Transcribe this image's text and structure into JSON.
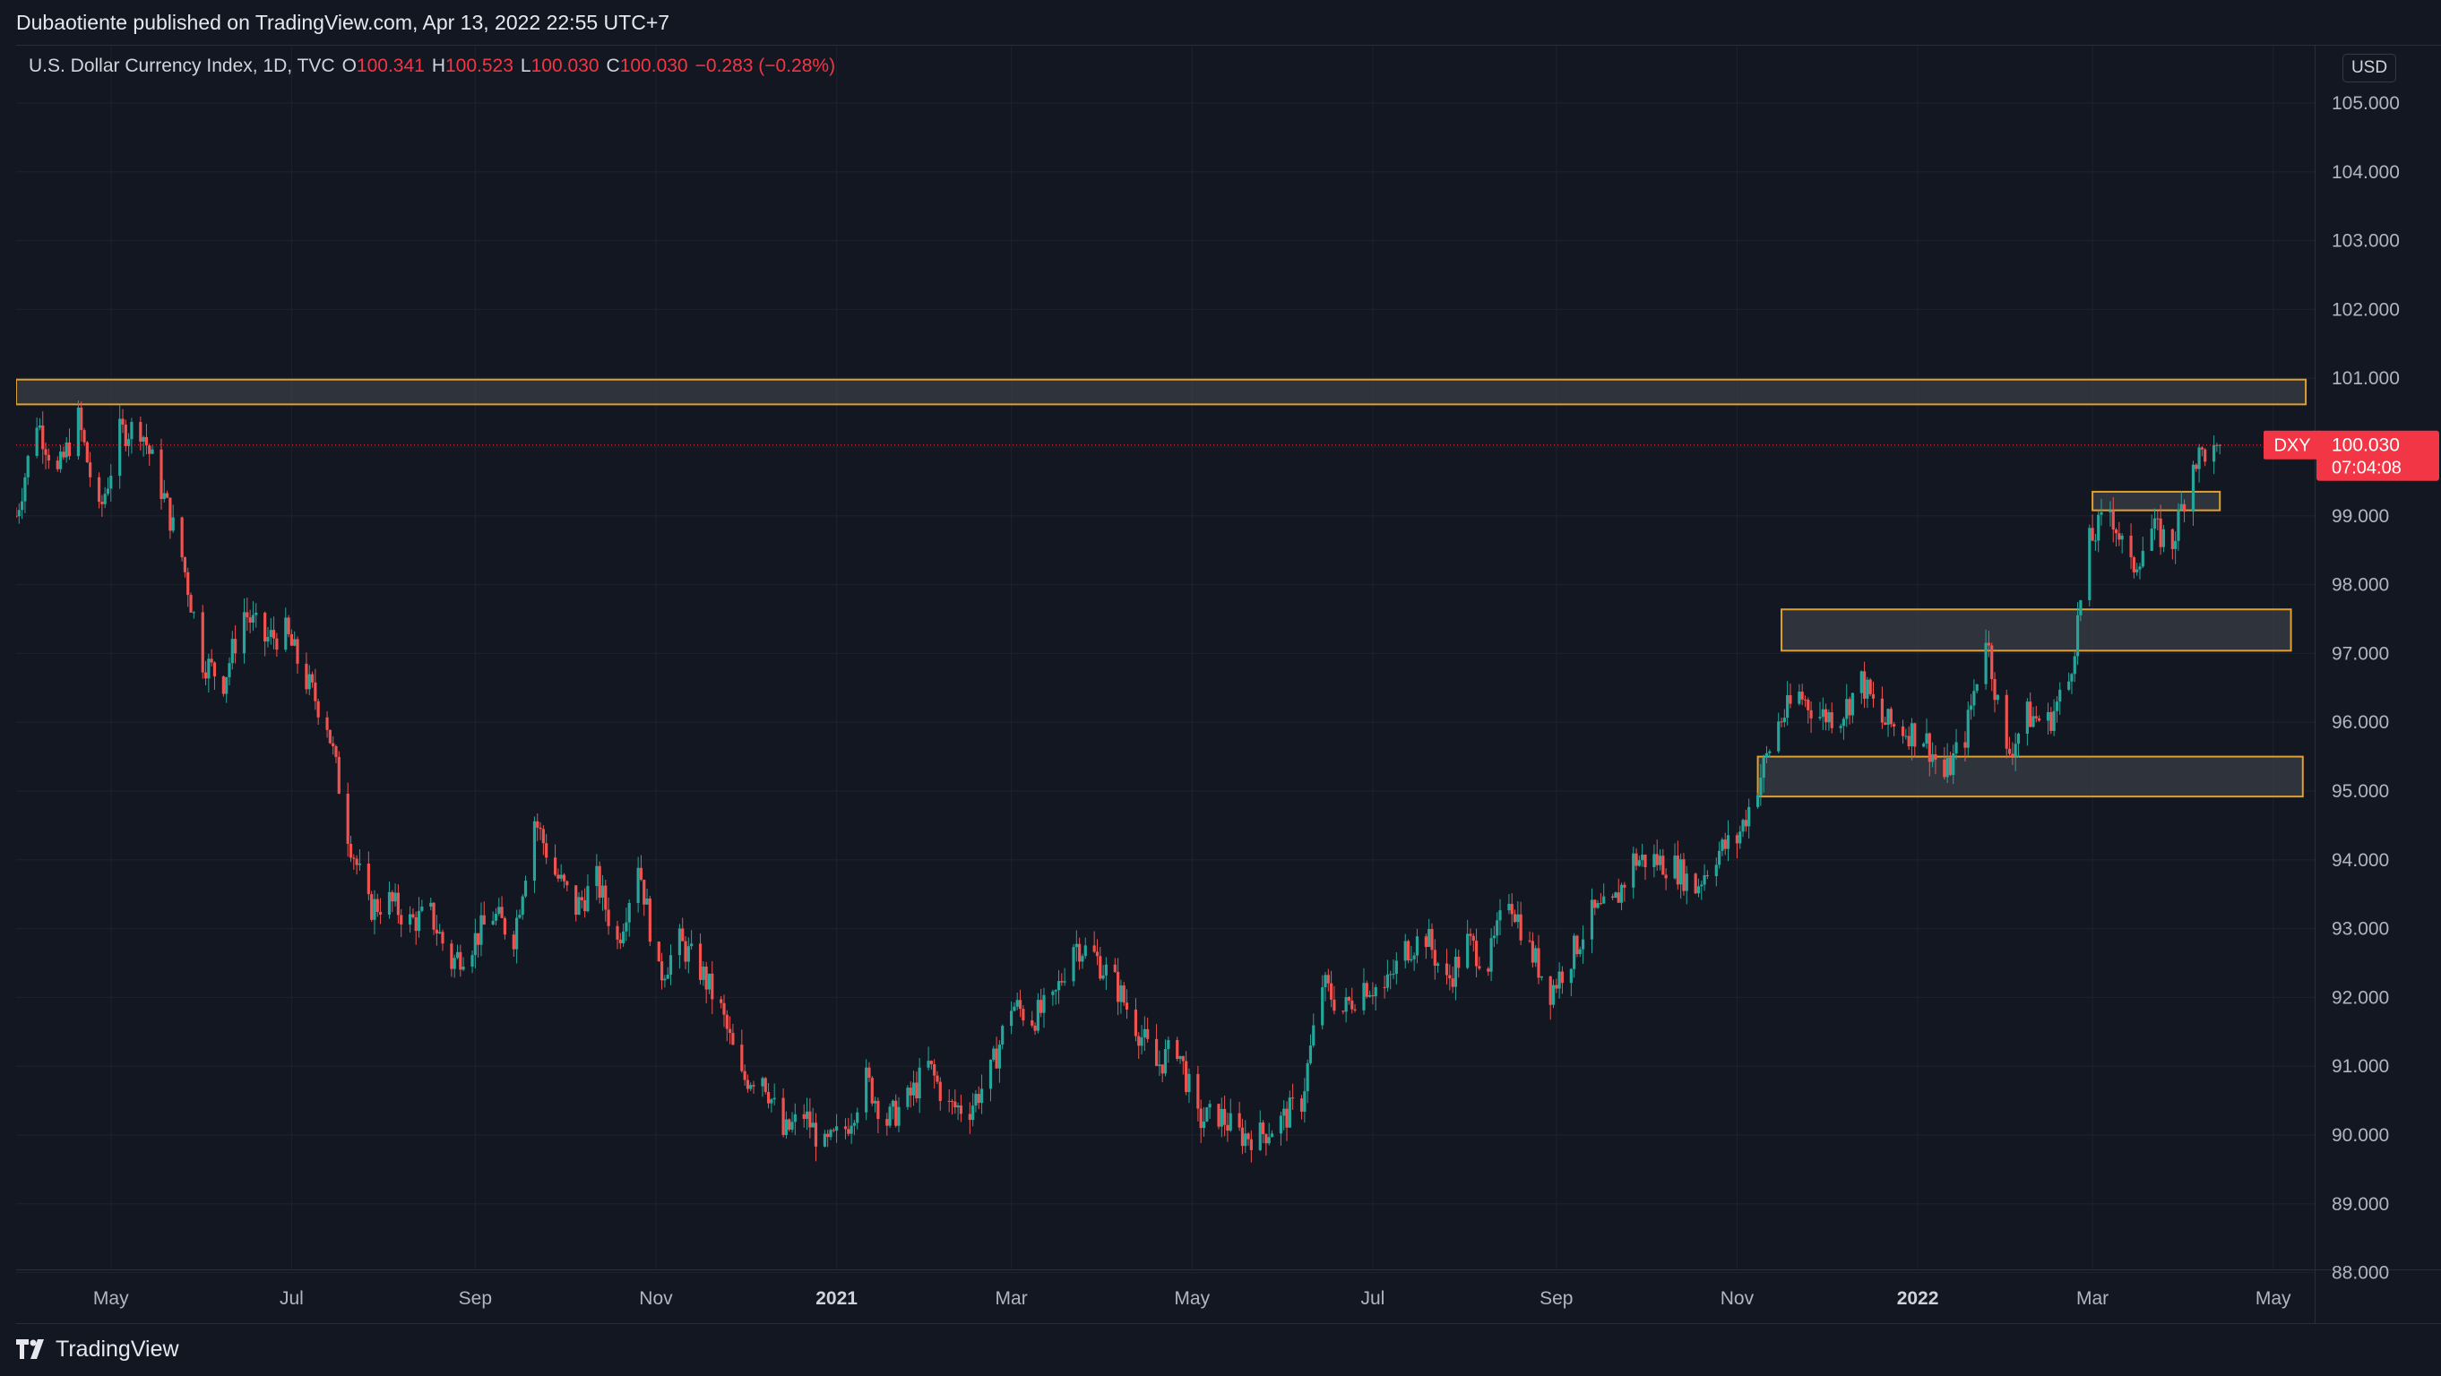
{
  "header": {
    "publisher": "Dubaotiente published on TradingView.com, Apr 13, 2022 22:55 UTC+7"
  },
  "legend": {
    "symbol": "U.S. Dollar Currency Index, 1D, TVC",
    "o_label": "O",
    "o_value": "100.341",
    "h_label": "H",
    "h_value": "100.523",
    "l_label": "L",
    "l_value": "100.030",
    "c_label": "C",
    "c_value": "100.030",
    "change": "−0.283 (−0.28%)"
  },
  "currency_button": "USD",
  "footer": {
    "logo_text": "TradingView"
  },
  "colors": {
    "background": "#131722",
    "grid": "#1e222d",
    "up": "#26a69a",
    "down": "#ef5350",
    "zone_border": "#e0a030",
    "zone_fill": "#3a3d46",
    "price_label": "#f23645"
  },
  "chart_data": {
    "type": "candlestick",
    "title": "U.S. Dollar Currency Index, 1D, TVC",
    "ylim": [
      88.0,
      105.5
    ],
    "y_ticks": [
      "105.000",
      "104.000",
      "103.000",
      "102.000",
      "101.000",
      "100.000",
      "99.000",
      "98.000",
      "97.000",
      "96.000",
      "95.000",
      "94.000",
      "93.000",
      "92.000",
      "91.000",
      "90.000",
      "89.000",
      "88.000"
    ],
    "x_labels": [
      {
        "label": "May",
        "date": "2020-05-01",
        "bold": false
      },
      {
        "label": "Jul",
        "date": "2020-07-01",
        "bold": false
      },
      {
        "label": "Sep",
        "date": "2020-09-01",
        "bold": false
      },
      {
        "label": "Nov",
        "date": "2020-11-01",
        "bold": false
      },
      {
        "label": "2021",
        "date": "2021-01-01",
        "bold": true
      },
      {
        "label": "Mar",
        "date": "2021-03-01",
        "bold": false
      },
      {
        "label": "May",
        "date": "2021-05-01",
        "bold": false
      },
      {
        "label": "Jul",
        "date": "2021-07-01",
        "bold": false
      },
      {
        "label": "Sep",
        "date": "2021-09-01",
        "bold": false
      },
      {
        "label": "Nov",
        "date": "2021-11-01",
        "bold": false
      },
      {
        "label": "2022",
        "date": "2022-01-01",
        "bold": true
      },
      {
        "label": "Mar",
        "date": "2022-03-01",
        "bold": false
      },
      {
        "label": "May",
        "date": "2022-05-01",
        "bold": false
      }
    ],
    "x_range": [
      "2020-03-30",
      "2022-05-15"
    ],
    "close_path": [
      [
        "2020-03-30",
        99.0
      ],
      [
        "2020-04-06",
        100.4
      ],
      [
        "2020-04-13",
        99.6
      ],
      [
        "2020-04-20",
        100.4
      ],
      [
        "2020-04-27",
        99.0
      ],
      [
        "2020-05-04",
        100.2
      ],
      [
        "2020-05-11",
        100.3
      ],
      [
        "2020-05-18",
        99.4
      ],
      [
        "2020-05-25",
        98.4
      ],
      [
        "2020-06-01",
        96.9
      ],
      [
        "2020-06-08",
        96.6
      ],
      [
        "2020-06-15",
        97.6
      ],
      [
        "2020-06-22",
        97.2
      ],
      [
        "2020-06-29",
        97.3
      ],
      [
        "2020-07-06",
        96.6
      ],
      [
        "2020-07-13",
        96.0
      ],
      [
        "2020-07-20",
        94.4
      ],
      [
        "2020-07-27",
        93.3
      ],
      [
        "2020-08-03",
        93.4
      ],
      [
        "2020-08-10",
        93.1
      ],
      [
        "2020-08-17",
        93.2
      ],
      [
        "2020-08-24",
        92.5
      ],
      [
        "2020-08-31",
        92.8
      ],
      [
        "2020-09-07",
        93.2
      ],
      [
        "2020-09-14",
        92.9
      ],
      [
        "2020-09-21",
        94.6
      ],
      [
        "2020-09-28",
        93.8
      ],
      [
        "2020-10-05",
        93.3
      ],
      [
        "2020-10-12",
        93.7
      ],
      [
        "2020-10-19",
        92.8
      ],
      [
        "2020-10-26",
        94.0
      ],
      [
        "2020-11-02",
        92.3
      ],
      [
        "2020-11-09",
        92.8
      ],
      [
        "2020-11-16",
        92.4
      ],
      [
        "2020-11-23",
        91.8
      ],
      [
        "2020-11-30",
        90.8
      ],
      [
        "2020-12-07",
        90.9
      ],
      [
        "2020-12-14",
        90.0
      ],
      [
        "2020-12-21",
        90.3
      ],
      [
        "2020-12-28",
        89.8
      ],
      [
        "2021-01-04",
        90.1
      ],
      [
        "2021-01-11",
        90.8
      ],
      [
        "2021-01-18",
        90.2
      ],
      [
        "2021-01-25",
        90.5
      ],
      [
        "2021-02-01",
        91.0
      ],
      [
        "2021-02-08",
        90.4
      ],
      [
        "2021-02-15",
        90.4
      ],
      [
        "2021-02-22",
        90.9
      ],
      [
        "2021-03-01",
        91.9
      ],
      [
        "2021-03-08",
        91.7
      ],
      [
        "2021-03-15",
        91.9
      ],
      [
        "2021-03-22",
        92.8
      ],
      [
        "2021-03-29",
        92.6
      ],
      [
        "2021-04-05",
        92.2
      ],
      [
        "2021-04-12",
        91.6
      ],
      [
        "2021-04-19",
        91.0
      ],
      [
        "2021-04-26",
        91.3
      ],
      [
        "2021-05-03",
        90.2
      ],
      [
        "2021-05-10",
        90.3
      ],
      [
        "2021-05-17",
        90.0
      ],
      [
        "2021-05-24",
        90.0
      ],
      [
        "2021-05-31",
        90.2
      ],
      [
        "2021-06-07",
        90.5
      ],
      [
        "2021-06-14",
        92.2
      ],
      [
        "2021-06-21",
        91.8
      ],
      [
        "2021-06-28",
        92.2
      ],
      [
        "2021-07-05",
        92.1
      ],
      [
        "2021-07-12",
        92.7
      ],
      [
        "2021-07-19",
        92.9
      ],
      [
        "2021-07-26",
        92.2
      ],
      [
        "2021-08-02",
        92.8
      ],
      [
        "2021-08-09",
        92.5
      ],
      [
        "2021-08-16",
        93.5
      ],
      [
        "2021-08-23",
        92.7
      ],
      [
        "2021-08-30",
        92.1
      ],
      [
        "2021-09-06",
        92.6
      ],
      [
        "2021-09-13",
        93.2
      ],
      [
        "2021-09-20",
        93.3
      ],
      [
        "2021-09-27",
        94.0
      ],
      [
        "2021-10-04",
        94.0
      ],
      [
        "2021-10-11",
        93.9
      ],
      [
        "2021-10-18",
        93.6
      ],
      [
        "2021-10-25",
        94.1
      ],
      [
        "2021-11-01",
        94.3
      ],
      [
        "2021-11-08",
        95.1
      ],
      [
        "2021-11-15",
        96.0
      ],
      [
        "2021-11-22",
        96.4
      ],
      [
        "2021-11-29",
        96.1
      ],
      [
        "2021-12-06",
        96.1
      ],
      [
        "2021-12-13",
        96.6
      ],
      [
        "2021-12-20",
        96.0
      ],
      [
        "2021-12-27",
        95.9
      ],
      [
        "2022-01-03",
        95.8
      ],
      [
        "2022-01-10",
        95.2
      ],
      [
        "2022-01-17",
        95.8
      ],
      [
        "2022-01-24",
        97.3
      ],
      [
        "2022-01-31",
        95.5
      ],
      [
        "2022-02-07",
        96.1
      ],
      [
        "2022-02-14",
        96.0
      ],
      [
        "2022-02-21",
        96.6
      ],
      [
        "2022-02-28",
        98.6
      ],
      [
        "2022-03-07",
        99.1
      ],
      [
        "2022-03-14",
        98.2
      ],
      [
        "2022-03-21",
        98.8
      ],
      [
        "2022-03-28",
        98.6
      ],
      [
        "2022-04-04",
        99.8
      ],
      [
        "2022-04-11",
        100.03
      ]
    ],
    "zones": [
      {
        "from": "2020-03-30",
        "to": "2022-05-12",
        "low": 100.62,
        "high": 100.98
      },
      {
        "from": "2022-03-01",
        "to": "2022-04-13",
        "low": 99.08,
        "high": 99.35
      },
      {
        "from": "2021-11-16",
        "to": "2022-05-07",
        "low": 97.04,
        "high": 97.64
      },
      {
        "from": "2021-11-08",
        "to": "2022-05-11",
        "low": 94.92,
        "high": 95.5
      }
    ],
    "last_price_line": 100.03,
    "price_label": {
      "symbol": "DXY",
      "price": "100.030",
      "countdown": "07:04:08"
    }
  }
}
